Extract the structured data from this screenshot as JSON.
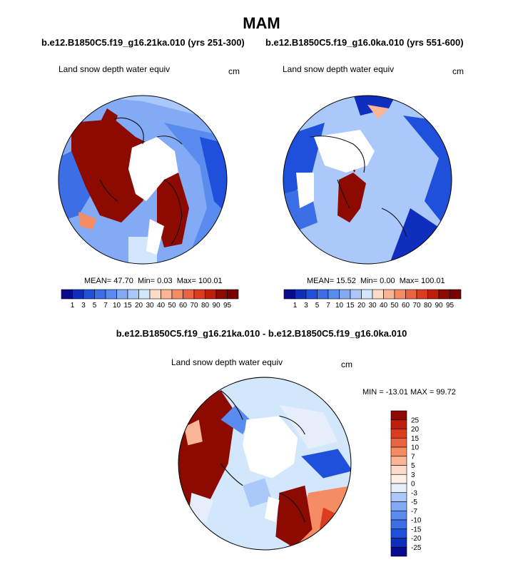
{
  "season": "MAM",
  "panels": [
    {
      "case": "b.e12.B1850C5.f19_g16.21ka.010 (yrs 251-300)",
      "variable": "Land snow depth water equiv",
      "units": "cm",
      "mean_label": "MEAN=",
      "mean": "47.70",
      "min_label": "Min=",
      "min": "0.03",
      "max_label": "Max=",
      "max": "100.01"
    },
    {
      "case": "b.e12.B1850C5.f19_g16.0ka.010 (yrs 551-600)",
      "variable": "Land snow depth water equiv",
      "units": "cm",
      "mean_label": "MEAN=",
      "mean": "15.52",
      "min_label": "Min=",
      "min": "0.00",
      "max_label": "Max=",
      "max": "100.01"
    }
  ],
  "diff": {
    "title": "b.e12.B1850C5.f19_g16.21ka.010 - b.e12.B1850C5.f19_g16.0ka.010",
    "variable": "Land snow depth water equiv",
    "units": "cm",
    "minmax": "MIN = -13.01 MAX = 99.72"
  },
  "colorbar_levels": [
    "1",
    "3",
    "5",
    "7",
    "10",
    "15",
    "20",
    "30",
    "40",
    "50",
    "60",
    "70",
    "80",
    "90",
    "95"
  ],
  "colorbar_colors": [
    "#0a0a8c",
    "#0f2ebe",
    "#1e50dc",
    "#3c6ee6",
    "#5a8cf0",
    "#82aaf5",
    "#aac8fa",
    "#d2e6fc",
    "#fcdcc8",
    "#fab496",
    "#f58c64",
    "#eb6441",
    "#dc3c1e",
    "#be1e0a",
    "#8c0a00",
    "#780000"
  ],
  "diff_levels": [
    "25",
    "20",
    "15",
    "10",
    "7",
    "5",
    "3",
    "0",
    "-3",
    "-5",
    "-7",
    "-10",
    "-15",
    "-20",
    "-25"
  ],
  "diff_colors": [
    "#8c0a00",
    "#be1e0a",
    "#dc3c1e",
    "#eb6441",
    "#f58c64",
    "#fab496",
    "#fcdcc8",
    "#fdf0e6",
    "#e6eefc",
    "#aac8fa",
    "#82aaf5",
    "#5a8cf0",
    "#3c6ee6",
    "#1e50dc",
    "#0f2ebe",
    "#0a0a8c"
  ],
  "chart_data": [
    {
      "type": "heatmap",
      "title": "b.e12.B1850C5.f19_g16.21ka.010 (yrs 251-300)",
      "subtitle": "Land snow depth water equiv",
      "units": "cm",
      "projection": "north polar stereographic",
      "mean": 47.7,
      "min": 0.03,
      "max": 100.01,
      "levels": [
        1,
        3,
        5,
        7,
        10,
        15,
        20,
        30,
        40,
        50,
        60,
        70,
        80,
        90,
        95
      ]
    },
    {
      "type": "heatmap",
      "title": "b.e12.B1850C5.f19_g16.0ka.010 (yrs 551-600)",
      "subtitle": "Land snow depth water equiv",
      "units": "cm",
      "projection": "north polar stereographic",
      "mean": 15.52,
      "min": 0.0,
      "max": 100.01,
      "levels": [
        1,
        3,
        5,
        7,
        10,
        15,
        20,
        30,
        40,
        50,
        60,
        70,
        80,
        90,
        95
      ]
    },
    {
      "type": "heatmap",
      "title": "b.e12.B1850C5.f19_g16.21ka.010 - b.e12.B1850C5.f19_g16.0ka.010",
      "subtitle": "Land snow depth water equiv",
      "units": "cm",
      "projection": "north polar stereographic",
      "min": -13.01,
      "max": 99.72,
      "levels": [
        25,
        20,
        15,
        10,
        7,
        5,
        3,
        0,
        -3,
        -5,
        -7,
        -10,
        -15,
        -20,
        -25
      ]
    }
  ]
}
